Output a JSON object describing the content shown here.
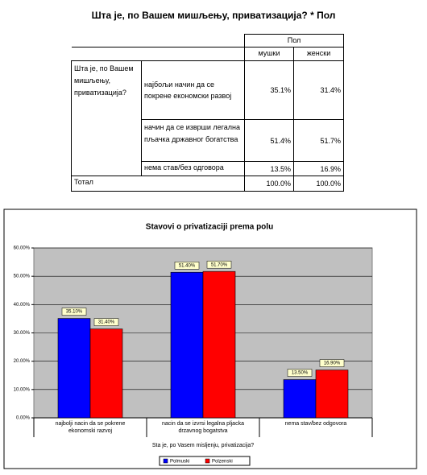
{
  "table": {
    "title": "Шта је, по Вашем мишљењу, приватизација? * Пол",
    "col_group": "Пол",
    "columns": [
      "мушки",
      "женски"
    ],
    "row_group": "Шта је, по Вашем мишљењу, приватизација?",
    "rows": [
      [
        "најбољи начин да се покрене економски развој",
        "35.1%",
        "31.4%"
      ],
      [
        "начин да се изврши легална пљачка државног богатства",
        "51.4%",
        "51.7%"
      ],
      [
        "нема став/без одговора",
        "13.5%",
        "16.9%"
      ]
    ],
    "total": [
      "Тотал",
      "100.0%",
      "100.0%"
    ]
  },
  "chart_data": {
    "type": "bar",
    "title": "Stavovi o privatizaciji prema polu",
    "x_label": "Sta je, po Vasem misljenju, privatizacija?",
    "categories": [
      "najbolji nacin da se pokrene ekonomski razvoj",
      "nacin da se izvrsi legalna pljacka drzavnog bogatstva",
      "nema stav/bez odgovora"
    ],
    "series": [
      {
        "name": "Polmuski",
        "color": "#0000ff",
        "values": [
          35.1,
          51.4,
          13.5
        ],
        "value_labels": [
          "35.10%",
          "51.40%",
          "13.50%"
        ]
      },
      {
        "name": "Polzenski",
        "color": "#ff0000",
        "values": [
          31.4,
          51.7,
          16.9
        ],
        "value_labels": [
          "31.40%",
          "51.70%",
          "16.90%"
        ]
      }
    ],
    "ylim": [
      0,
      60
    ],
    "yticks": [
      {
        "value": 0,
        "label": "0.00%"
      },
      {
        "value": 10,
        "label": "10.00%"
      },
      {
        "value": 20,
        "label": "20.00%"
      },
      {
        "value": 30,
        "label": "30.00%"
      },
      {
        "value": 40,
        "label": "40.00%"
      },
      {
        "value": 50,
        "label": "50.00%"
      },
      {
        "value": 60,
        "label": "60.00%"
      }
    ],
    "grid": true
  }
}
